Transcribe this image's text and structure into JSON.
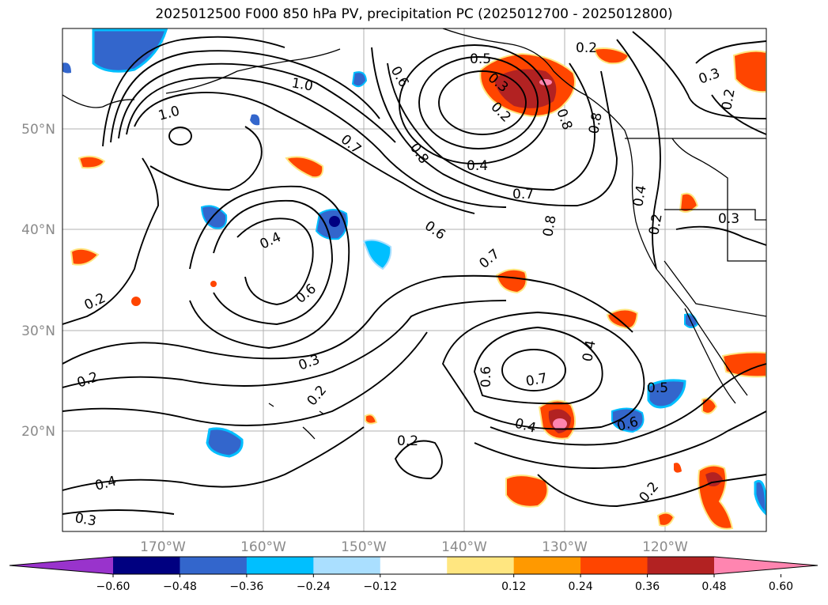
{
  "title": "2025012500 F000 850 hPa PV, precipitation PC (2025012700 - 2025012800)",
  "lat_labels": [
    "50°N",
    "40°N",
    "30°N",
    "20°N"
  ],
  "lon_labels": [
    "170°W",
    "160°W",
    "150°W",
    "140°W",
    "130°W",
    "120°W"
  ],
  "contour_labels": [
    "1.0",
    "1.0",
    "0.6",
    "0.5",
    "0.3",
    "0.2",
    "0.4",
    "0.8",
    "0.7",
    "0.7",
    "0.8",
    "0.6",
    "0.4",
    "0.8",
    "0.4",
    "0.8",
    "0.3",
    "0.2",
    "0.2",
    "0.7",
    "0.4",
    "0.6",
    "0.2",
    "0.3",
    "0.2",
    "0.2",
    "0.6",
    "0.7",
    "0.4",
    "0.4",
    "0.5",
    "0.6",
    "0.2",
    "0.2",
    "0.3",
    "0.2",
    "0.3"
  ],
  "colorbar": {
    "ticks": [
      "−0.60",
      "−0.48",
      "−0.36",
      "−0.24",
      "−0.12",
      "0.12",
      "0.24",
      "0.36",
      "0.48",
      "0.60"
    ],
    "colors": [
      "#9933cc",
      "#000080",
      "#3366cc",
      "#00bfff",
      "#aadfff",
      "#ffffff",
      "#ffe680",
      "#ff9900",
      "#ff4500",
      "#b22222",
      "#ff85b0"
    ]
  }
}
